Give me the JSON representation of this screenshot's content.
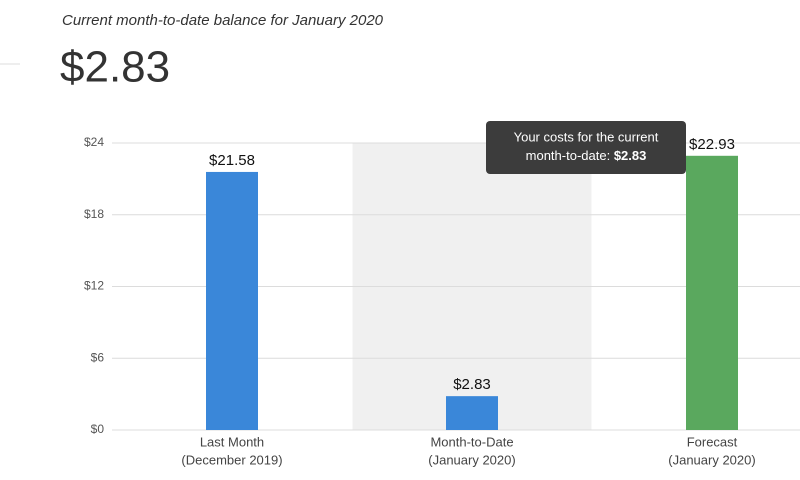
{
  "chart_data": {
    "type": "bar",
    "title": "Current month-to-date balance for January 2020",
    "headline": "$2.83",
    "categories": [
      [
        "Last Month",
        "(December 2019)"
      ],
      [
        "Month-to-Date",
        "(January 2020)"
      ],
      [
        "Forecast",
        "(January 2020)"
      ]
    ],
    "values": [
      21.58,
      2.83,
      22.93
    ],
    "value_labels": [
      "$21.58",
      "$2.83",
      "$22.93"
    ],
    "colors": [
      "#3a87d9",
      "#3a87d9",
      "#5aa85e"
    ],
    "ylim": [
      0,
      24
    ],
    "yticks": [
      {
        "value": 0,
        "label": "$0"
      },
      {
        "value": 6,
        "label": "$6"
      },
      {
        "value": 12,
        "label": "$12"
      },
      {
        "value": 18,
        "label": "$18"
      },
      {
        "value": 24,
        "label": "$24"
      }
    ],
    "grid": true,
    "tooltip": {
      "text_lines": [
        "Your costs for the current",
        "month-to-date:"
      ],
      "value_label": "$2.83"
    }
  }
}
